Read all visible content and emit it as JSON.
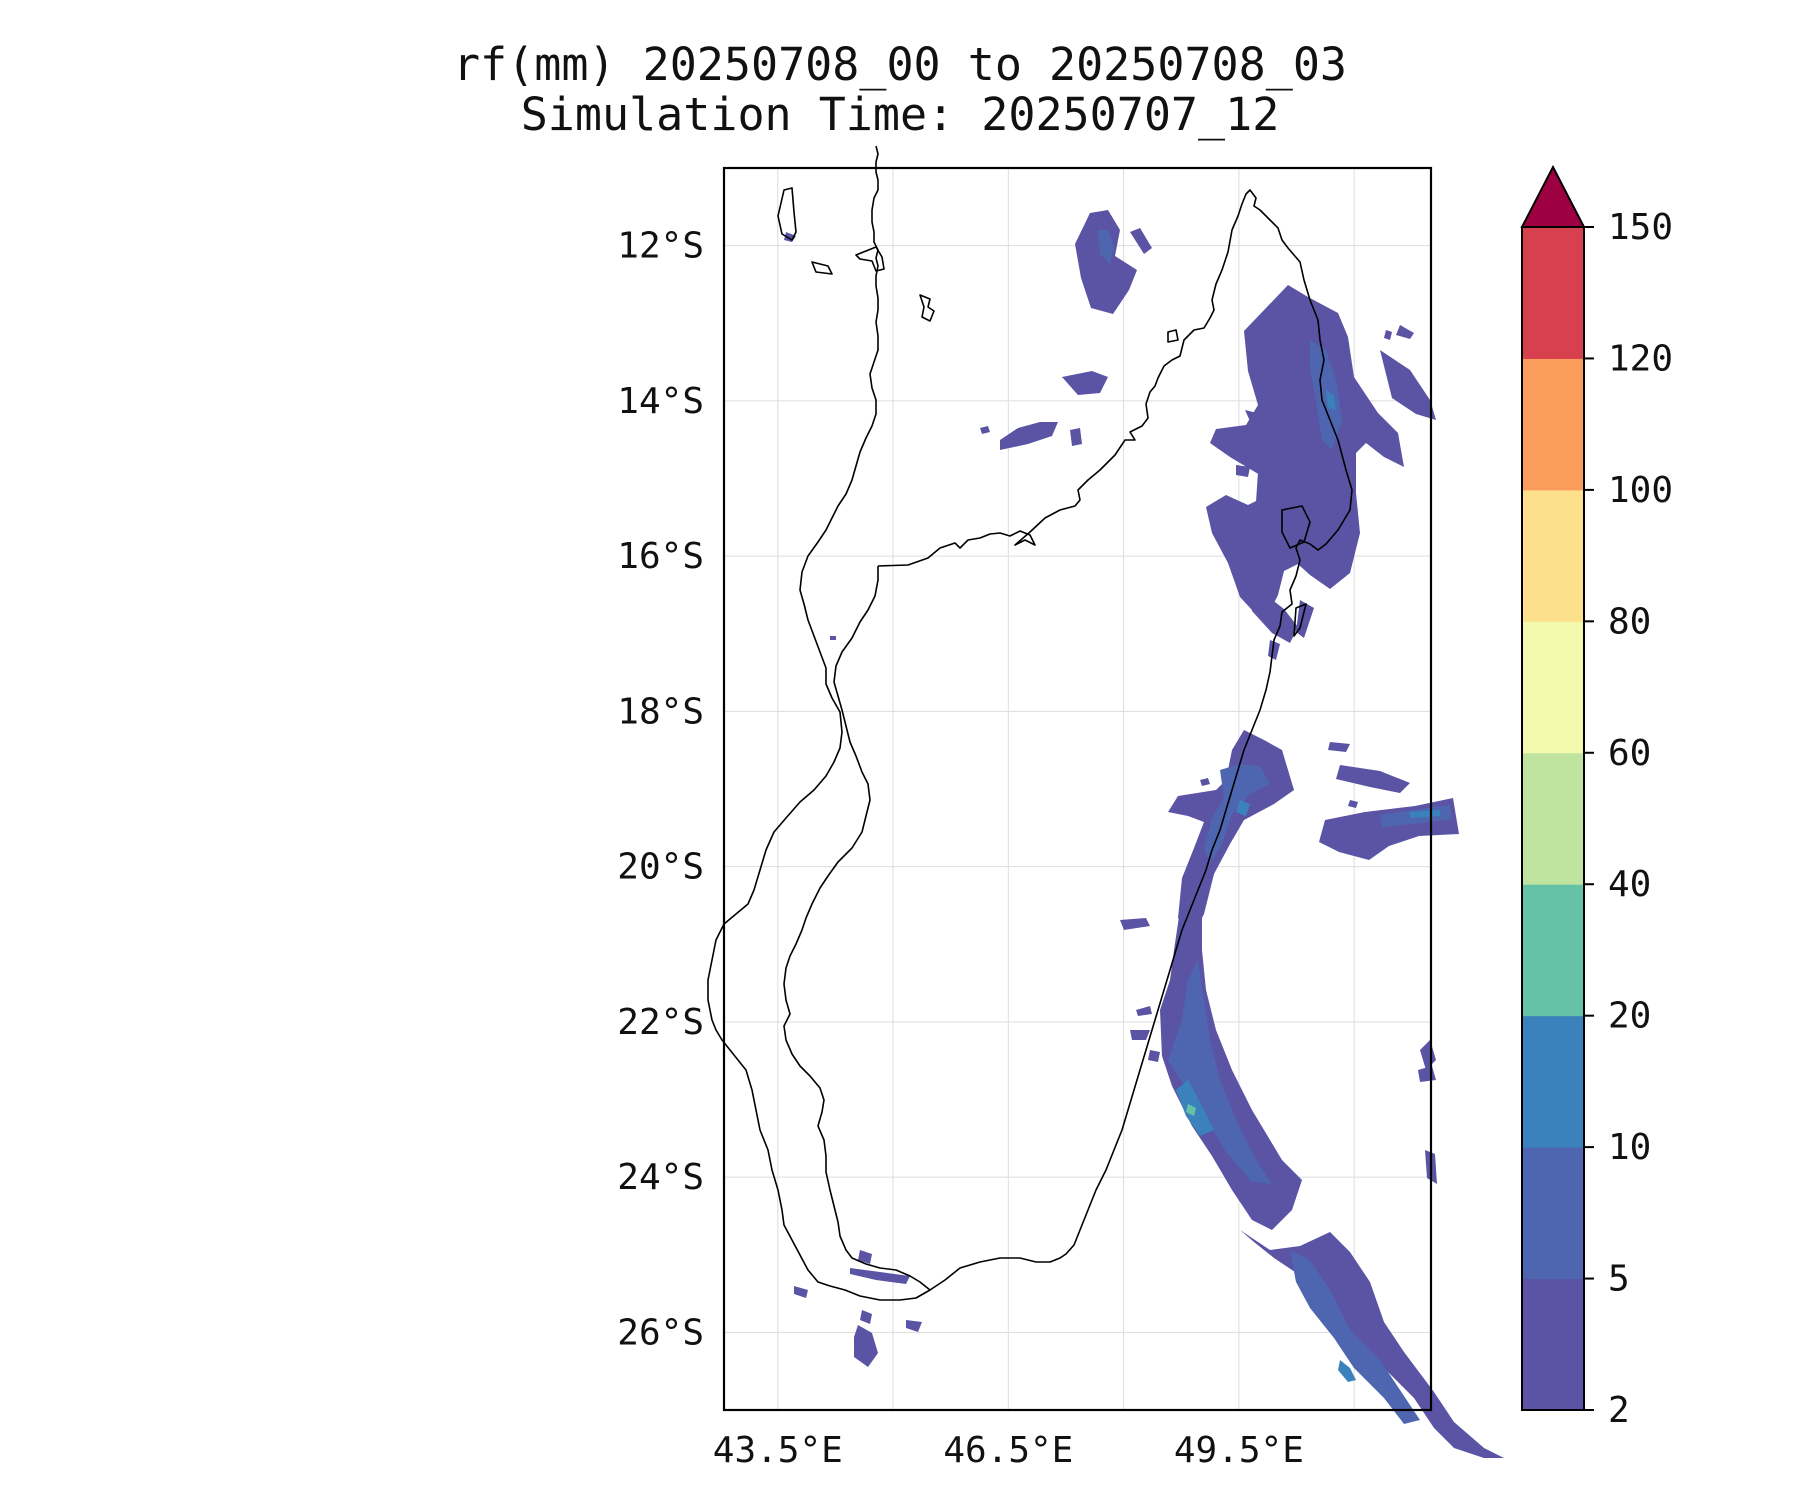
{
  "title": {
    "line1": "rf(mm) 20250708_00 to 20250708_03",
    "line2": "Simulation Time: 20250707_12"
  },
  "map": {
    "lon_range": [
      42.8,
      52.0
    ],
    "lat_range": [
      -27.0,
      -11.0
    ],
    "lat_ticks": [
      {
        "value": -12,
        "label": "12°S"
      },
      {
        "value": -14,
        "label": "14°S"
      },
      {
        "value": -16,
        "label": "16°S"
      },
      {
        "value": -18,
        "label": "18°S"
      },
      {
        "value": -20,
        "label": "20°S"
      },
      {
        "value": -22,
        "label": "22°S"
      },
      {
        "value": -24,
        "label": "24°S"
      },
      {
        "value": -26,
        "label": "26°S"
      }
    ],
    "lon_ticks": [
      {
        "value": 43.5,
        "label": "43.5°E"
      },
      {
        "value": 46.5,
        "label": "46.5°E"
      },
      {
        "value": 49.5,
        "label": "49.5°E"
      }
    ],
    "grid": true,
    "coastline_color": "#000000"
  },
  "colorbar": {
    "levels": [
      {
        "value": 2,
        "label": "2"
      },
      {
        "value": 5,
        "label": "5"
      },
      {
        "value": 10,
        "label": "10"
      },
      {
        "value": 20,
        "label": "20"
      },
      {
        "value": 40,
        "label": "40"
      },
      {
        "value": 60,
        "label": "60"
      },
      {
        "value": 80,
        "label": "80"
      },
      {
        "value": 100,
        "label": "100"
      },
      {
        "value": 120,
        "label": "120"
      },
      {
        "value": 150,
        "label": "150"
      }
    ],
    "colors": [
      "#5b53a4",
      "#4e66b0",
      "#3b82bc",
      "#66c2a5",
      "#bee4a0",
      "#f4faad",
      "#fde08b",
      "#fa9c5a",
      "#d7404e"
    ],
    "extend_color": "#9e0142"
  }
}
